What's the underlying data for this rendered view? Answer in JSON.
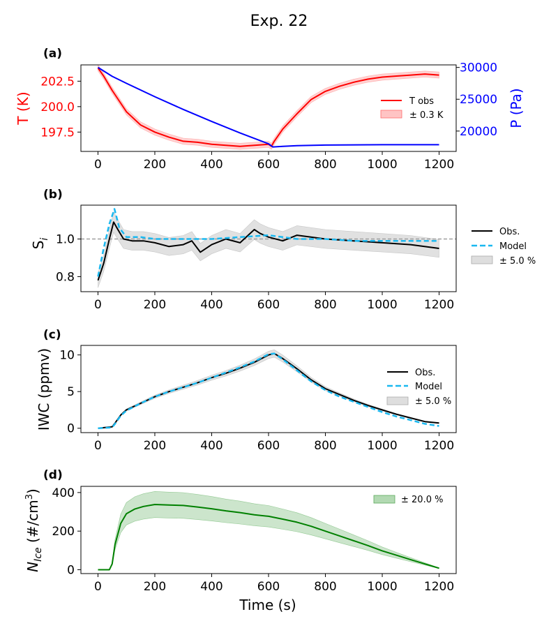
{
  "figure": {
    "title": "Exp. 22"
  },
  "chart_data": [
    {
      "panel": "(a)",
      "type": "line",
      "xlabel": "",
      "ylabel": "T (K)",
      "y2label": "P (Pa)",
      "xlim": [
        -60,
        1260
      ],
      "ylim": [
        195.6,
        204.1
      ],
      "y2lim": [
        16800,
        30400
      ],
      "xticks": [
        "0",
        "200",
        "400",
        "600",
        "800",
        "1000",
        "1200"
      ],
      "yticks": [
        "197.5",
        "200.0",
        "202.5"
      ],
      "y2ticks": [
        "20000",
        "25000",
        "30000"
      ],
      "legend": "center-right",
      "colors": {
        "T obs": "#ff0000",
        "band": "#ff9c9c",
        "P": "#0000ff"
      },
      "series": [
        {
          "name": "T obs",
          "axis": "left",
          "band": 0.3,
          "band_label": "± 0.3 K",
          "x": [
            0,
            20,
            50,
            100,
            150,
            200,
            250,
            300,
            350,
            400,
            450,
            500,
            550,
            600,
            610,
            620,
            650,
            700,
            750,
            800,
            850,
            900,
            950,
            1000,
            1050,
            1100,
            1150,
            1200
          ],
          "values": [
            203.8,
            203.0,
            201.6,
            199.5,
            198.2,
            197.5,
            197.0,
            196.6,
            196.5,
            196.3,
            196.2,
            196.1,
            196.2,
            196.3,
            196.1,
            196.6,
            197.8,
            199.3,
            200.7,
            201.5,
            202.0,
            202.4,
            202.7,
            202.9,
            203.0,
            203.1,
            203.2,
            203.1
          ]
        },
        {
          "name": "P",
          "axis": "right",
          "x": [
            0,
            50,
            100,
            200,
            300,
            400,
            500,
            600,
            615,
            650,
            700,
            800,
            1000,
            1200
          ],
          "values": [
            30000,
            28600,
            27500,
            25400,
            23400,
            21500,
            19700,
            18000,
            17500,
            17600,
            17700,
            17800,
            17850,
            17850
          ]
        }
      ]
    },
    {
      "panel": "(b)",
      "type": "line",
      "xlabel": "",
      "ylabel": "S",
      "ylabel_sub": "i",
      "xlim": [
        -60,
        1260
      ],
      "ylim": [
        0.72,
        1.18
      ],
      "xticks": [
        "0",
        "200",
        "400",
        "600",
        "800",
        "1000",
        "1200"
      ],
      "yticks": [
        "0.8",
        "1.0"
      ],
      "reference_line": 1.0,
      "legend": "outside-right",
      "legend_labels": [
        "Obs.",
        "Model",
        "± 5.0 %"
      ],
      "colors": {
        "Obs.": "#000000",
        "Model": "#1ab8f0",
        "band": "#bdbdbd"
      },
      "series": [
        {
          "name": "Obs.",
          "band": 0.05,
          "x": [
            0,
            20,
            40,
            55,
            70,
            90,
            120,
            160,
            200,
            250,
            300,
            330,
            360,
            400,
            450,
            500,
            550,
            570,
            600,
            650,
            700,
            800,
            900,
            1000,
            1100,
            1200
          ],
          "values": [
            0.78,
            0.87,
            1.0,
            1.09,
            1.05,
            1.0,
            0.99,
            0.99,
            0.98,
            0.96,
            0.97,
            0.99,
            0.93,
            0.97,
            1.0,
            0.98,
            1.05,
            1.03,
            1.01,
            0.99,
            1.02,
            1.0,
            0.99,
            0.98,
            0.97,
            0.95
          ]
        },
        {
          "name": "Model",
          "x": [
            0,
            20,
            40,
            58,
            75,
            100,
            150,
            200,
            300,
            400,
            500,
            600,
            700,
            800,
            900,
            1000,
            1100,
            1200
          ],
          "values": [
            0.8,
            0.95,
            1.08,
            1.16,
            1.06,
            1.01,
            1.01,
            1.0,
            1.0,
            1.0,
            1.01,
            1.02,
            1.0,
            1.0,
            0.99,
            0.99,
            0.99,
            0.99
          ]
        }
      ]
    },
    {
      "panel": "(c)",
      "type": "line",
      "xlabel": "",
      "ylabel": "IWC (ppmv)",
      "xlim": [
        -60,
        1260
      ],
      "ylim": [
        -0.6,
        11.3
      ],
      "xticks": [
        "0",
        "200",
        "400",
        "600",
        "800",
        "1000",
        "1200"
      ],
      "yticks": [
        "0",
        "5",
        "10"
      ],
      "legend": "center-right",
      "legend_labels": [
        "Obs.",
        "Model",
        "± 5.0 %"
      ],
      "colors": {
        "Obs.": "#000000",
        "Model": "#1ab8f0",
        "band": "#bdbdbd"
      },
      "series": [
        {
          "name": "Obs.",
          "band": 0.05,
          "x": [
            0,
            50,
            60,
            80,
            100,
            150,
            200,
            250,
            300,
            350,
            400,
            450,
            500,
            550,
            600,
            620,
            650,
            700,
            750,
            800,
            850,
            900,
            950,
            1000,
            1050,
            1100,
            1150,
            1200
          ],
          "values": [
            0,
            0.2,
            0.7,
            1.8,
            2.5,
            3.4,
            4.3,
            5.0,
            5.6,
            6.2,
            6.9,
            7.5,
            8.2,
            9.0,
            10.0,
            10.2,
            9.5,
            8.1,
            6.6,
            5.4,
            4.6,
            3.8,
            3.1,
            2.5,
            1.9,
            1.4,
            0.9,
            0.7
          ]
        },
        {
          "name": "Model",
          "x": [
            0,
            50,
            60,
            80,
            100,
            150,
            200,
            250,
            300,
            350,
            400,
            450,
            500,
            550,
            600,
            620,
            650,
            700,
            750,
            800,
            850,
            900,
            950,
            1000,
            1050,
            1100,
            1150,
            1200
          ],
          "values": [
            0,
            0.1,
            0.6,
            1.7,
            2.4,
            3.4,
            4.3,
            5.0,
            5.6,
            6.2,
            6.9,
            7.6,
            8.3,
            9.1,
            10.1,
            10.2,
            9.4,
            7.9,
            6.4,
            5.2,
            4.3,
            3.6,
            2.9,
            2.2,
            1.6,
            1.1,
            0.6,
            0.3
          ]
        }
      ]
    },
    {
      "panel": "(d)",
      "type": "area",
      "xlabel": "Time (s)",
      "ylabel": "N",
      "ylabel_sub": "Ice",
      "ylabel_rest": " (#/cm",
      "ylabel_sup": "3",
      "ylabel_end": ")",
      "xlim": [
        -60,
        1260
      ],
      "ylim": [
        -20,
        432
      ],
      "xticks": [
        "0",
        "200",
        "400",
        "600",
        "800",
        "1000",
        "1200"
      ],
      "yticks": [
        "0",
        "200",
        "400"
      ],
      "legend": "top-right",
      "legend_labels": [
        "± 20.0 %"
      ],
      "colors": {
        "line": "#008000",
        "band": "#7fbf7f"
      },
      "series": [
        {
          "name": "",
          "band": 0.2,
          "x": [
            0,
            40,
            50,
            60,
            80,
            100,
            130,
            160,
            200,
            250,
            300,
            350,
            400,
            450,
            500,
            550,
            600,
            650,
            700,
            750,
            800,
            850,
            900,
            950,
            1000,
            1050,
            1100,
            1150,
            1200
          ],
          "values": [
            0,
            0,
            30,
            130,
            240,
            290,
            315,
            328,
            338,
            335,
            333,
            325,
            316,
            305,
            296,
            285,
            277,
            262,
            246,
            225,
            200,
            175,
            150,
            125,
            98,
            75,
            52,
            30,
            8
          ]
        }
      ]
    }
  ]
}
